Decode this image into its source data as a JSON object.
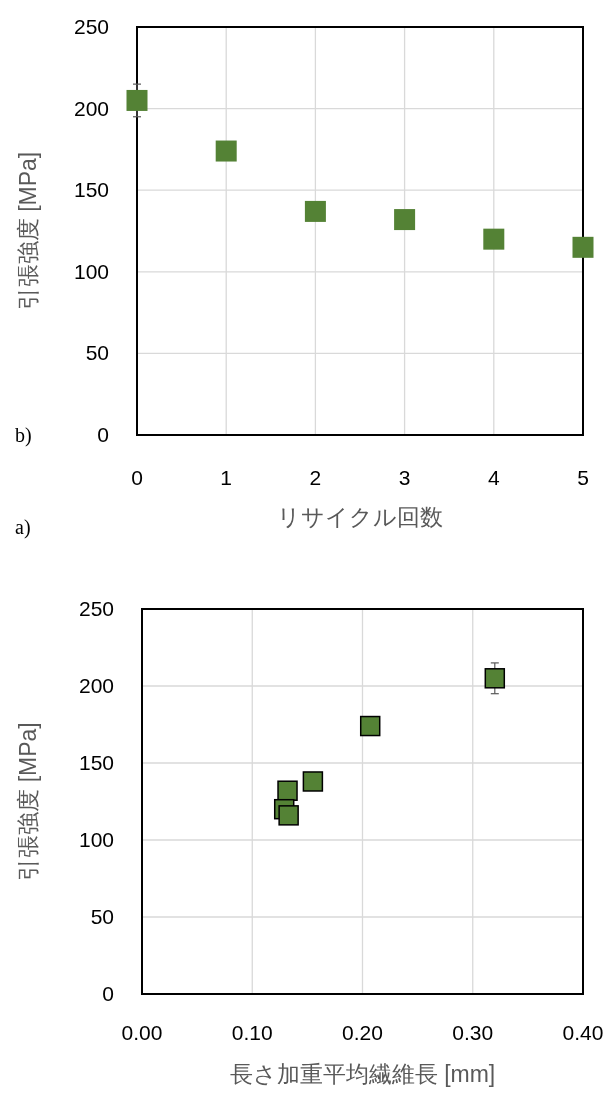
{
  "chart_data": [
    {
      "type": "scatter",
      "xlabel": "リサイクル回数",
      "ylabel": "引張強度 [MPa]",
      "annotations": [
        "b)",
        "a)"
      ],
      "x": [
        0,
        1,
        2,
        3,
        4,
        5
      ],
      "series": [
        {
          "color": "#548235",
          "values": [
            205,
            174,
            137,
            132,
            120,
            115
          ],
          "errors": [
            10,
            null,
            null,
            null,
            null,
            null
          ]
        }
      ],
      "xlim": [
        0,
        5
      ],
      "xticks": [
        0,
        1,
        2,
        3,
        4,
        5
      ],
      "ylim": [
        0,
        250
      ],
      "yticks": [
        0,
        50,
        100,
        150,
        200,
        250
      ],
      "grid": true,
      "marker": "square"
    },
    {
      "type": "scatter",
      "xlabel": "長さ加重平均繊維長 [mm]",
      "ylabel": "引張強度 [MPa]",
      "x": [
        0.32,
        0.207,
        0.155,
        0.132,
        0.129,
        0.133
      ],
      "series": [
        {
          "color": "#548235",
          "values": [
            205,
            174,
            138,
            132,
            120,
            116
          ],
          "errors": [
            10,
            null,
            null,
            null,
            null,
            null
          ]
        }
      ],
      "xlim": [
        0,
        0.4
      ],
      "xticks": [
        {
          "value": 0,
          "label": "0.00"
        },
        {
          "value": 0.1,
          "label": "0.10"
        },
        {
          "value": 0.2,
          "label": "0.20"
        },
        {
          "value": 0.3,
          "label": "0.30"
        },
        {
          "value": 0.4,
          "label": "0.40"
        }
      ],
      "ylim": [
        0,
        250
      ],
      "yticks": [
        0,
        50,
        100,
        150,
        200,
        250
      ],
      "grid": true,
      "marker": "square"
    }
  ]
}
